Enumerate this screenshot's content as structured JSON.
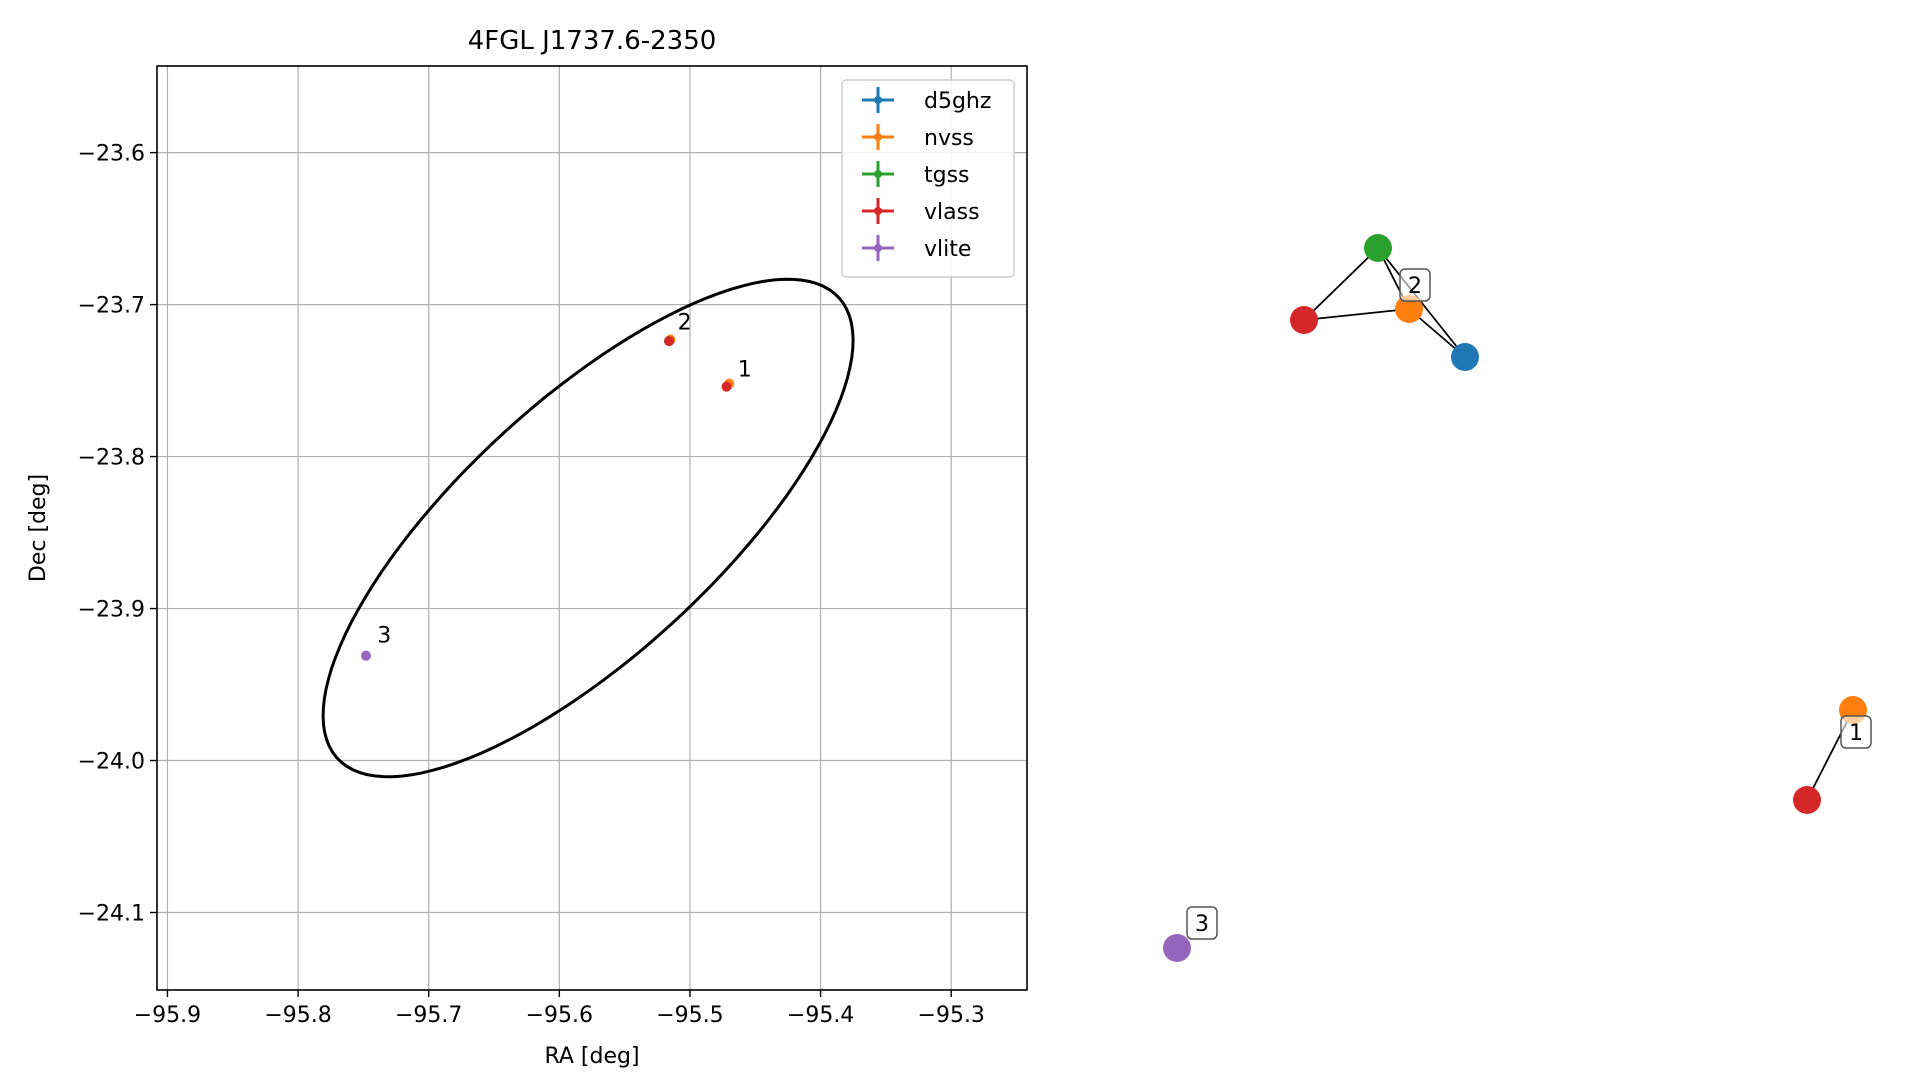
{
  "chart_data": [
    {
      "type": "scatter",
      "title": "4FGL J1737.6-2350",
      "xlabel": "RA [deg]",
      "ylabel": "Dec [deg]",
      "xlim": [
        -95.908,
        -95.242
      ],
      "ylim": [
        -24.151,
        -23.543
      ],
      "xticks": [
        -95.9,
        -95.8,
        -95.7,
        -95.6,
        -95.5,
        -95.4,
        -95.3
      ],
      "xtick_labels": [
        "−95.9",
        "−95.8",
        "−95.7",
        "−95.6",
        "−95.5",
        "−95.4",
        "−95.3"
      ],
      "yticks": [
        -23.6,
        -23.7,
        -23.8,
        -23.9,
        -24.0,
        -24.1
      ],
      "ytick_labels": [
        "−23.6",
        "−23.7",
        "−23.8",
        "−23.9",
        "−24.0",
        "−24.1"
      ],
      "grid": true,
      "legend_position": "top-right",
      "series": [
        {
          "name": "d5ghz",
          "color": "#1f77b4",
          "points": [
            [
              -95.516,
              -23.724
            ]
          ]
        },
        {
          "name": "nvss",
          "color": "#ff7f0e",
          "points": [
            [
              -95.515,
              -23.723
            ],
            [
              -95.47,
              -23.752
            ]
          ]
        },
        {
          "name": "tgss",
          "color": "#2ca02c",
          "points": [
            [
              -95.516,
              -23.724
            ]
          ]
        },
        {
          "name": "vlass",
          "color": "#d62728",
          "points": [
            [
              -95.516,
              -23.724
            ],
            [
              -95.472,
              -23.754
            ]
          ]
        },
        {
          "name": "vlite",
          "color": "#9467bd",
          "points": [
            [
              -95.748,
              -23.931
            ]
          ]
        }
      ],
      "annotations": [
        {
          "text": "1",
          "x": -95.468,
          "y": -23.75
        },
        {
          "text": "2",
          "x": -95.514,
          "y": -23.719
        },
        {
          "text": "3",
          "x": -95.744,
          "y": -23.925
        }
      ],
      "ellipse": {
        "center": [
          -95.578,
          -23.847
        ],
        "semi_major_deg": 0.245,
        "semi_minor_deg": 0.089,
        "angle_deg": 37,
        "color": "#000000"
      }
    },
    {
      "type": "graph",
      "nodes": [
        {
          "id": "tgss-2",
          "color": "#2ca02c"
        },
        {
          "id": "nvss-2",
          "color": "#ff7f0e"
        },
        {
          "id": "vlass-2",
          "color": "#d62728"
        },
        {
          "id": "d5ghz-2",
          "color": "#1f77b4"
        },
        {
          "id": "nvss-1",
          "color": "#ff7f0e"
        },
        {
          "id": "vlass-1",
          "color": "#d62728"
        },
        {
          "id": "vlite-3",
          "color": "#9467bd"
        }
      ],
      "edges": [
        [
          "tgss-2",
          "vlass-2"
        ],
        [
          "tgss-2",
          "nvss-2"
        ],
        [
          "tgss-2",
          "d5ghz-2"
        ],
        [
          "vlass-2",
          "nvss-2"
        ],
        [
          "nvss-2",
          "d5ghz-2"
        ],
        [
          "nvss-1",
          "vlass-1"
        ]
      ],
      "labels": [
        {
          "text": "2",
          "node": "nvss-2"
        },
        {
          "text": "1",
          "node": "nvss-1"
        },
        {
          "text": "3",
          "node": "vlite-3"
        }
      ]
    }
  ]
}
